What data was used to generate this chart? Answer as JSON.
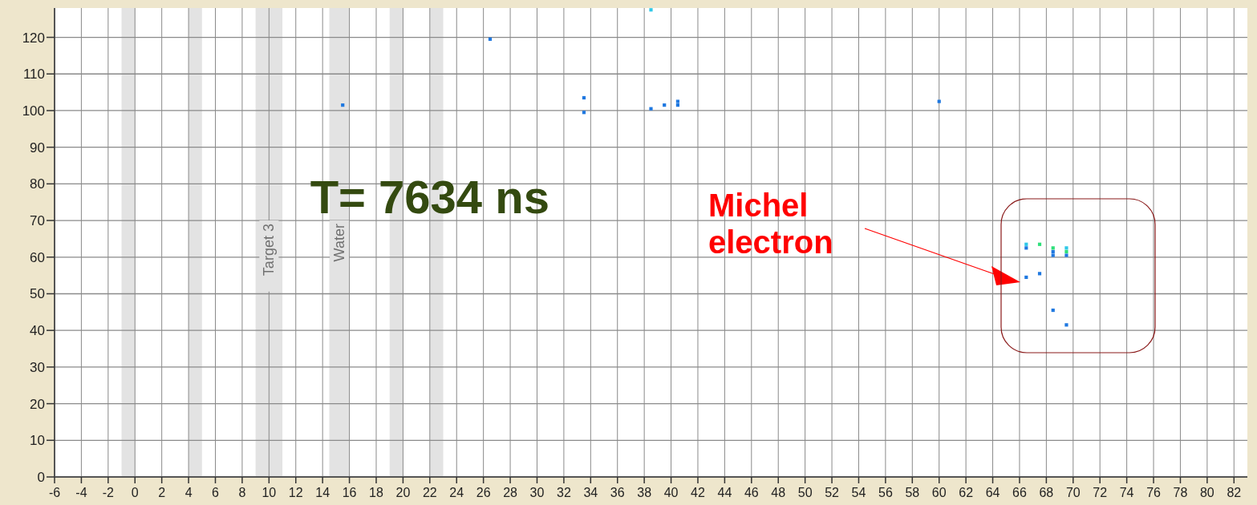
{
  "chart_data": {
    "type": "scatter",
    "xlim": [
      -6,
      83
    ],
    "ylim": [
      0,
      128
    ],
    "xticks": [
      -6,
      -4,
      -2,
      0,
      2,
      4,
      6,
      8,
      10,
      12,
      14,
      16,
      18,
      20,
      22,
      24,
      26,
      28,
      30,
      32,
      34,
      36,
      38,
      40,
      42,
      44,
      46,
      48,
      50,
      52,
      54,
      56,
      58,
      60,
      62,
      64,
      66,
      68,
      70,
      72,
      74,
      76,
      78,
      80,
      82
    ],
    "yticks": [
      0,
      10,
      20,
      30,
      40,
      50,
      60,
      70,
      80,
      90,
      100,
      110,
      120
    ],
    "grid": true,
    "marker": "square",
    "series": [
      {
        "color": "#1f78e0",
        "x": [
          15.5,
          26.5,
          33.5,
          33.5,
          38.5,
          39.5,
          40.5,
          40.5,
          60,
          66.5,
          66.5,
          67.5,
          68.5,
          68.5,
          68.5,
          69.5,
          69.5
        ],
        "values": [
          101.5,
          119.5,
          103.5,
          99.5,
          100.5,
          101.5,
          102.5,
          101.5,
          102.5,
          62.5,
          54.5,
          55.5,
          61.5,
          60.5,
          45.5,
          60.5,
          41.5
        ]
      },
      {
        "color": "#2ec8e8",
        "x": [
          38.5,
          66.5,
          69.5
        ],
        "values": [
          127.5,
          63.5,
          62.5
        ]
      },
      {
        "color": "#2ee07a",
        "x": [
          67.5,
          68.5,
          69.5
        ],
        "values": [
          63.5,
          62.5,
          61.5
        ]
      }
    ],
    "bands": [
      {
        "axis": "x",
        "from": -1,
        "to": 0,
        "color": "#e3e3e3"
      },
      {
        "axis": "x",
        "from": 4,
        "to": 5,
        "color": "#e3e3e3"
      },
      {
        "axis": "x",
        "from": 9,
        "to": 11,
        "label": "Target 3",
        "color": "#e3e3e3"
      },
      {
        "axis": "x",
        "from": 14.5,
        "to": 16,
        "label": "Water",
        "color": "#e3e3e3"
      },
      {
        "axis": "x",
        "from": 19,
        "to": 20,
        "color": "#e3e3e3"
      },
      {
        "axis": "x",
        "from": 22,
        "to": 23,
        "color": "#e3e3e3"
      }
    ],
    "annotations": [
      "T= 7634 ns",
      "Michel electron"
    ]
  }
}
